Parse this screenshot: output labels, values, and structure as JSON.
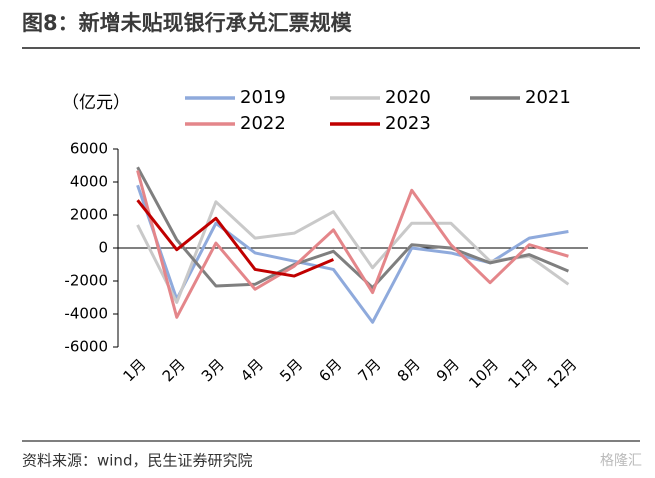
{
  "chart_data": {
    "type": "line",
    "title": "图8：新增未贴现银行承兑汇票规模",
    "y_label": "（亿元）",
    "source": "资料来源：wind，民生证券研究院",
    "watermark": "格隆汇",
    "categories": [
      "1月",
      "2月",
      "3月",
      "4月",
      "5月",
      "6月",
      "7月",
      "8月",
      "9月",
      "10月",
      "11月",
      "12月"
    ],
    "series": [
      {
        "name": "2019",
        "color": "#8faadc",
        "values": [
          3800,
          -3100,
          1500,
          -300,
          -800,
          -1300,
          -4500,
          0,
          -300,
          -900,
          600,
          1000
        ]
      },
      {
        "name": "2020",
        "color": "#c9c9c9",
        "values": [
          1400,
          -3300,
          2800,
          600,
          900,
          2200,
          -1200,
          1500,
          1500,
          -800,
          -500,
          -2200
        ]
      },
      {
        "name": "2021",
        "color": "#7f7f7f",
        "values": [
          4900,
          500,
          -2300,
          -2200,
          -1000,
          -200,
          -2400,
          200,
          0,
          -900,
          -400,
          -1400
        ]
      },
      {
        "name": "2022",
        "color": "#e4868a",
        "values": [
          4700,
          -4200,
          300,
          -2500,
          -1100,
          1100,
          -2700,
          3500,
          200,
          -2100,
          200,
          -500
        ]
      },
      {
        "name": "2023",
        "color": "#c00000",
        "values": [
          2900,
          -100,
          1800,
          -1300,
          -1700,
          -700,
          null,
          null,
          null,
          null,
          null,
          null
        ]
      }
    ],
    "ylim": [
      -6000,
      6000
    ],
    "yticks": [
      -6000,
      -4000,
      -2000,
      0,
      2000,
      4000,
      6000
    ]
  }
}
